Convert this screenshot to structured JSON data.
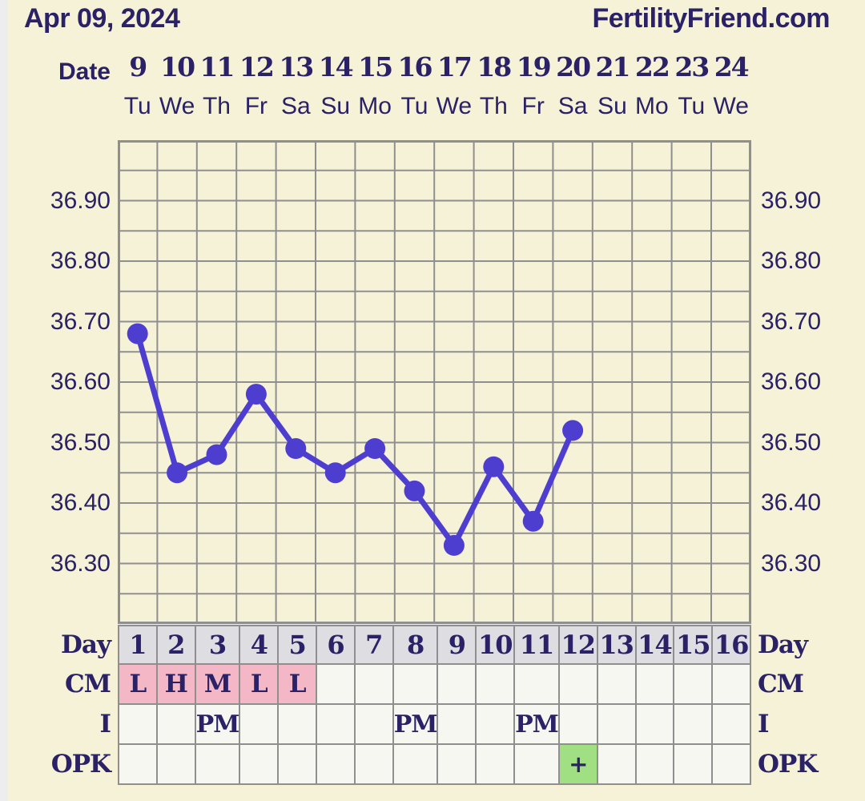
{
  "header": {
    "date_title": "Apr 09, 2024",
    "site": "FertilityFriend.com"
  },
  "date_axis": {
    "label": "Date",
    "dates": [
      "9",
      "10",
      "11",
      "12",
      "13",
      "14",
      "15",
      "16",
      "17",
      "18",
      "19",
      "20",
      "21",
      "22",
      "23",
      "24"
    ],
    "weekdays": [
      "Tu",
      "We",
      "Th",
      "Fr",
      "Sa",
      "Su",
      "Mo",
      "Tu",
      "We",
      "Th",
      "Fr",
      "Sa",
      "Su",
      "Mo",
      "Tu",
      "We"
    ]
  },
  "chart_data": {
    "type": "line",
    "title": "",
    "xlabel": "",
    "ylabel": "",
    "x_cycle_days": [
      1,
      2,
      3,
      4,
      5,
      6,
      7,
      8,
      9,
      10,
      11,
      12
    ],
    "values": [
      36.68,
      36.45,
      36.48,
      36.58,
      36.49,
      36.45,
      36.49,
      36.42,
      36.33,
      36.46,
      36.37,
      36.52
    ],
    "categories_cycle_days": [
      1,
      2,
      3,
      4,
      5,
      6,
      7,
      8,
      9,
      10,
      11,
      12,
      13,
      14,
      15,
      16
    ],
    "ytick_labels": [
      "36.90",
      "36.80",
      "36.70",
      "36.60",
      "36.50",
      "36.40",
      "36.30"
    ],
    "ylim": [
      36.2,
      37.0
    ],
    "grid_step": 0.05,
    "grid": "on",
    "legend": "none"
  },
  "table": {
    "rows": [
      {
        "label": "Day",
        "key": "day",
        "values": [
          "1",
          "2",
          "3",
          "4",
          "5",
          "6",
          "7",
          "8",
          "9",
          "10",
          "11",
          "12",
          "13",
          "14",
          "15",
          "16"
        ]
      },
      {
        "label": "CM",
        "key": "cm",
        "values": [
          "L",
          "H",
          "M",
          "L",
          "L",
          "",
          "",
          "",
          "",
          "",
          "",
          "",
          "",
          "",
          "",
          ""
        ]
      },
      {
        "label": "I",
        "key": "intercourse",
        "values": [
          "",
          "",
          "PM",
          "",
          "",
          "",
          "",
          "PM",
          "",
          "",
          "PM",
          "",
          "",
          "",
          "",
          ""
        ]
      },
      {
        "label": "OPK",
        "key": "opk",
        "values": [
          "",
          "",
          "",
          "",
          "",
          "",
          "",
          "",
          "",
          "",
          "",
          "+",
          "",
          "",
          "",
          ""
        ]
      }
    ]
  },
  "colors": {
    "background": "#f6f2d8",
    "text_navy": "#2a2166",
    "line_purple": "#4e3ecf",
    "grid_gray": "#8f8f8f",
    "day_row_gray": "#dedde2",
    "menses_pink": "#f4b7c6",
    "opk_positive_green": "#a0e083",
    "cell_white": "#f7f7f2",
    "left_strip_gray": "#ededed"
  }
}
